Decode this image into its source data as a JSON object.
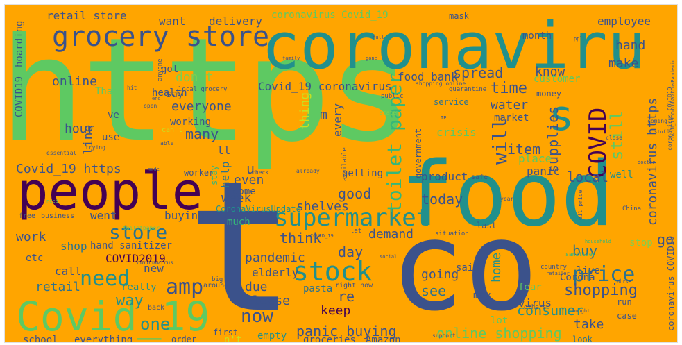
{
  "words": {
    "https": "https",
    "coronaviru": "coronaviru",
    "food": "food",
    "co": "co",
    "t": "t",
    "people": "people",
    "covid_19": "Covid_19",
    "grocery_store": "grocery store",
    "stock": "stock",
    "supermarket": "supermarket",
    "toilet_paper": "toilet paper",
    "covid": "COVID",
    "s": "s",
    "amp": "amp",
    "store": "store",
    "need": "need",
    "price": "price",
    "shopping": "shopping",
    "consumer": "consumer",
    "online_shopping": "online shopping",
    "panic_buying": "panic buying",
    "now": "now",
    "keep": "keep",
    "go": "go",
    "buy": "buy",
    "retail_store": "retail store",
    "coronavirus_covid_19_top": "coronavirus Covid_19",
    "covid_19_coronavirus": "Covid_19 coronavirus",
    "coronavirus_https": "coronavirus https",
    "covid_19_https": "Covid_19 https",
    "covid2019": "COVID2019",
    "covid19": "COVID19",
    "hand_sanitizer": "hand sanitizer",
    "pandemic": "pandemic",
    "elderly": "elderly",
    "due": "due",
    "please": "Please",
    "way": "way",
    "one": "one",
    "retail": "retail",
    "work": "work",
    "shop": "shop",
    "went": "went",
    "buying": "buying",
    "new": "new",
    "call": "call",
    "etc": "etc",
    "really": "really",
    "world": "world",
    "school": "school",
    "everything": "everything",
    "order": "order",
    "first": "first",
    "empty": "empty",
    "groceries": "groceries",
    "amazon": "Amazon",
    "lot": "lot",
    "take": "take",
    "case": "case",
    "virus": "virus",
    "look": "look",
    "run": "run",
    "fear": "fear",
    "may": "may",
    "said": "said",
    "pasta": "pasta",
    "right_now": "right now",
    "see": "see",
    "going": "going",
    "home": "home",
    "live": "live",
    "corona": "Corona",
    "stop": "stop",
    "demand": "demand",
    "today": "today",
    "good": "good",
    "shelves": "shelves",
    "week": "week",
    "even": "even",
    "help": "help",
    "u": "u",
    "re": "re",
    "think": "think",
    "day": "day",
    "much": "much",
    "coronavirusupdate": "CoronaVirusUpdate",
    "come": "come",
    "local": "local",
    "panic": "panic",
    "well": "well",
    "product": "product",
    "getting": "getting",
    "will": "will",
    "supplies": "supplies",
    "still": "still",
    "item": "item",
    "place": "place",
    "crisis": "crisis",
    "water": "water",
    "market": "market",
    "every": "every",
    "government": "government",
    "time": "time",
    "spread": "spread",
    "know": "know",
    "customer": "customer",
    "make": "make",
    "hand": "hand",
    "employee": "employee",
    "food_bank": "food bank",
    "month": "month",
    "mask": "mask",
    "delivery": "delivery",
    "want": "want",
    "got": "got",
    "online": "online",
    "don_t": "don t",
    "thank": "Thank",
    "health": "health",
    "everyone": "everyone",
    "working": "working",
    "many": "many",
    "hour": "hour",
    "line": "line",
    "ve": "ve",
    "use": "use",
    "say": "say",
    "ll": "ll",
    "thing": "thing",
    "m": "m",
    "n_t": "n't",
    "hoarding": "hoarding",
    "worker": "worker",
    "money": "money",
    "service": "service",
    "quarantine": "quarantine",
    "public": "public",
    "state": "state",
    "available": "available",
    "safe": "safe",
    "situation": "situation",
    "last": "last",
    "others": "others",
    "support": "support",
    "back": "back",
    "big": "big",
    "country": "country",
    "china": "China",
    "coronavirus_covid19": "coronavirus COVID19",
    "coronavirus_covid19_v": "coronavirus COVID19",
    "local_grocery": "local grocery",
    "shopping_online": "shopping online",
    "trying": "trying",
    "able": "able",
    "essential": "essential",
    "made": "made",
    "check": "check",
    "already": "already",
    "let": "let",
    "year": "year",
    "free": "free",
    "business": "business",
    "full": "full",
    "ppl": "ppl",
    "open": "open",
    "end": "end",
    "anyone": "anyone",
    "hit": "hit",
    "stay": "stay",
    "can_t": "can t",
    "coming": "coming",
    "close": "close",
    "stuff": "stuff",
    "oil_price": "oil price",
    "around": "around",
    "covid_19_coronaviruspandemic": "Covid_19 CoronavirusPandemic",
    "toilet_paper_small": "toiletpaper",
    "coronavirus_small": "coronavirus",
    "sanitizer": "sanitizer",
    "household": "household",
    "retailer": "retailer",
    "bought": "bought",
    "covid_19_small": "COVID_19",
    "need_small": "need",
    "tp": "TP",
    "family": "family",
    "gone": "gone",
    "doctor": "doctor",
    "social": "social",
    "nurse": "nurse"
  }
}
